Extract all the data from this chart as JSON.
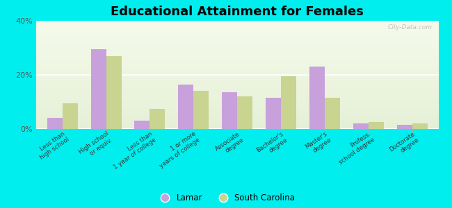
{
  "title": "Educational Attainment for Females",
  "categories": [
    "Less than\nhigh school",
    "High school\nor equiv.",
    "Less than\n1 year of college",
    "1 or more\nyears of college",
    "Associate\ndegree",
    "Bachelor's\ndegree",
    "Master's\ndegree",
    "Profess.\nschool degree",
    "Doctorate\ndegree"
  ],
  "lamar_values": [
    4.0,
    29.5,
    3.0,
    16.5,
    13.5,
    11.5,
    23.0,
    2.0,
    1.5
  ],
  "sc_values": [
    9.5,
    27.0,
    7.5,
    14.0,
    12.0,
    19.5,
    11.5,
    2.5,
    2.0
  ],
  "lamar_color": "#c8a0dc",
  "sc_color": "#c8d490",
  "background_color": "#00eeee",
  "ylim": [
    0,
    40
  ],
  "yticks": [
    0,
    20,
    40
  ],
  "ytick_labels": [
    "0%",
    "20%",
    "40%"
  ],
  "bar_width": 0.35,
  "watermark": "City-Data.com"
}
